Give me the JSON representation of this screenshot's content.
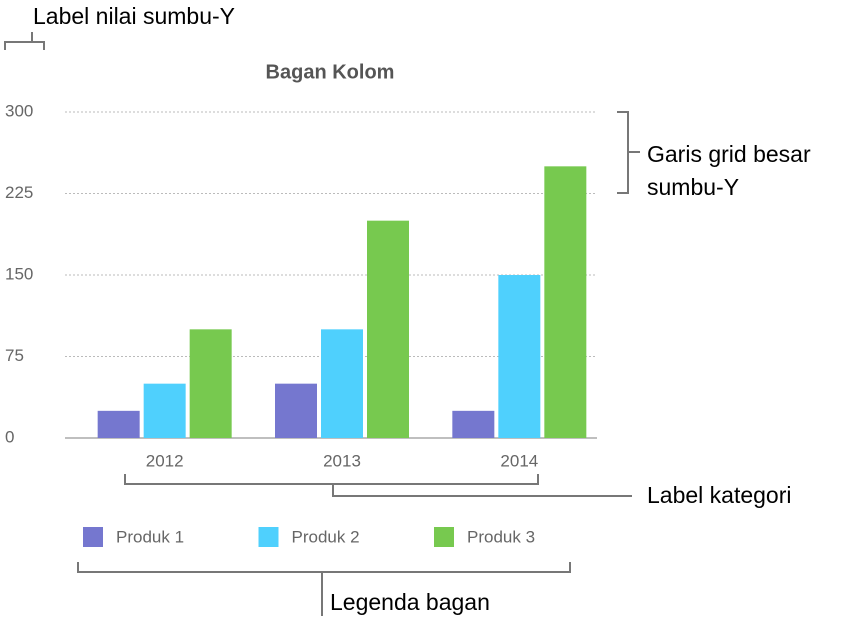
{
  "chart_data": {
    "type": "bar",
    "title": "Bagan Kolom",
    "categories": [
      "2012",
      "2013",
      "2014"
    ],
    "series": [
      {
        "name": "Produk 1",
        "color": "#7577cf",
        "values": [
          25,
          50,
          25
        ]
      },
      {
        "name": "Produk 2",
        "color": "#4fd0fd",
        "values": [
          50,
          100,
          150
        ]
      },
      {
        "name": "Produk 3",
        "color": "#77c94f",
        "values": [
          100,
          200,
          250
        ]
      }
    ],
    "ylim": [
      0,
      300
    ],
    "yticks": [
      0,
      75,
      150,
      225,
      300
    ],
    "grid": true,
    "legend": "bottom"
  },
  "annotations": {
    "y_value_label": "Label nilai sumbu-Y",
    "y_gridlines": [
      "Garis grid besar",
      "sumbu-Y"
    ],
    "category_label": "Label kategori",
    "legend": "Legenda bagan"
  }
}
